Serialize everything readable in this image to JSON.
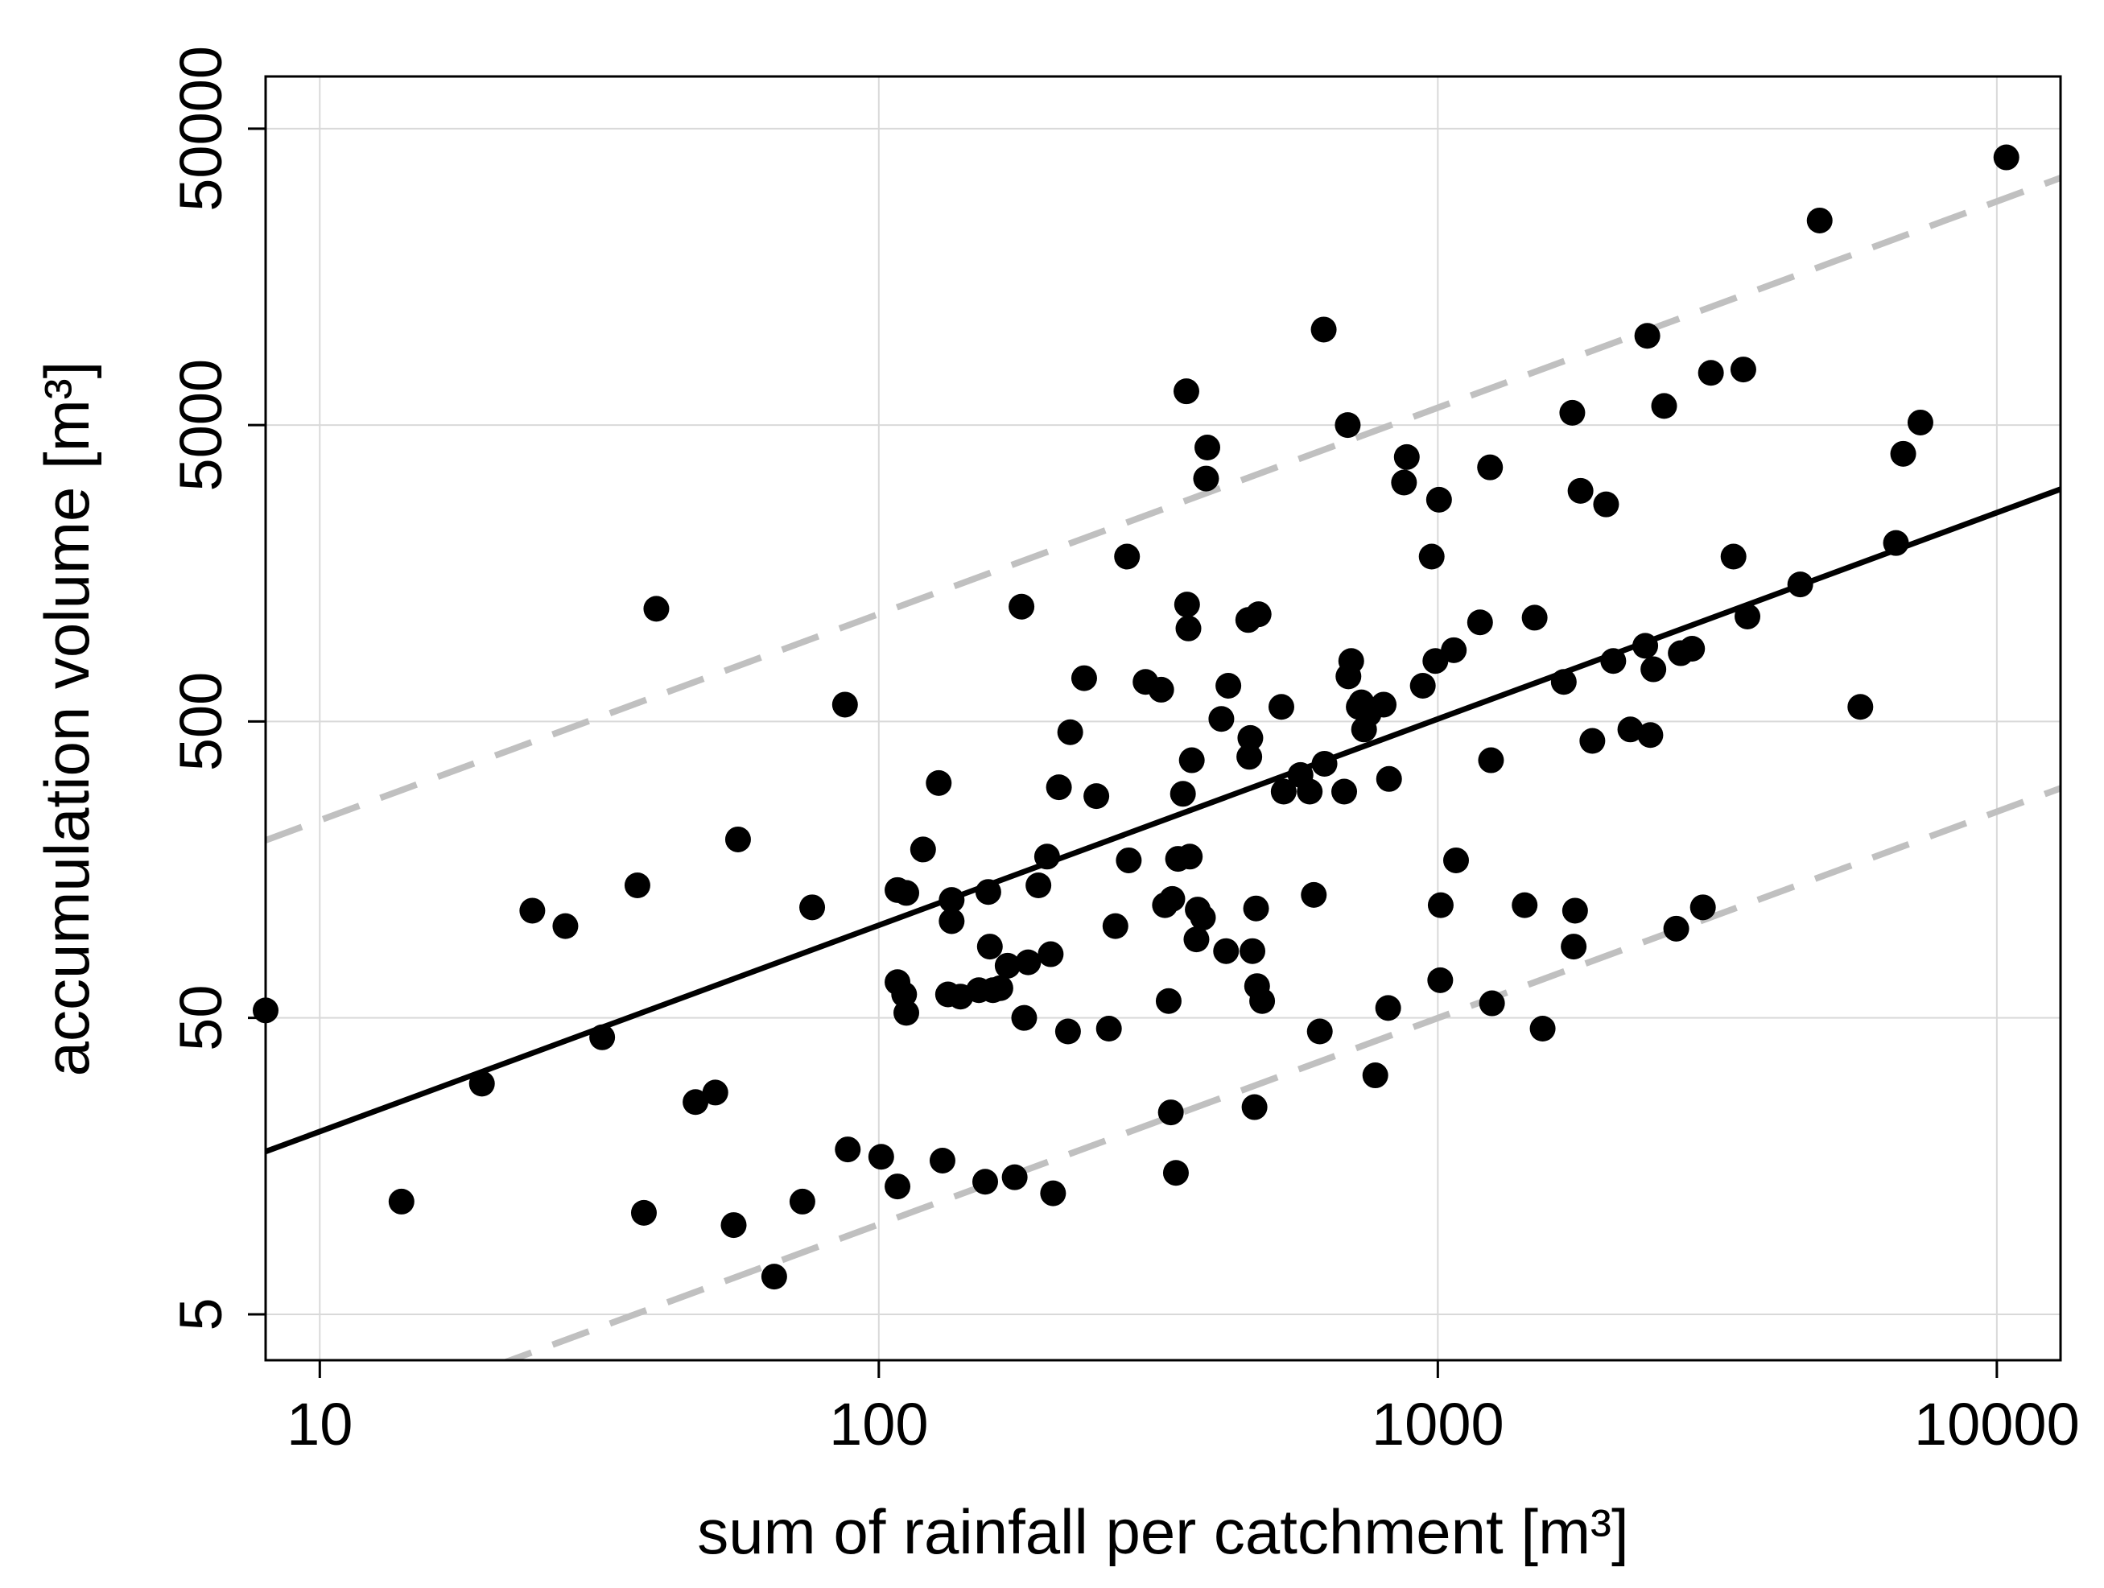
{
  "chart_data": {
    "type": "scatter",
    "title": "",
    "xlabel": "sum of rainfall per catchment [m³]",
    "ylabel": "accumulation volume [m³]",
    "xscale": "log10",
    "yscale": "log10",
    "xlim": [
      8,
      13000
    ],
    "ylim": [
      3.5,
      75000
    ],
    "grid": true,
    "legend": "none",
    "x_ticks": [
      10,
      100,
      1000,
      10000
    ],
    "x_tick_labels": [
      "10",
      "100",
      "1000",
      "10000"
    ],
    "y_ticks": [
      5,
      50,
      500,
      5000,
      50000
    ],
    "y_tick_labels": [
      "5",
      "50",
      "500",
      "5000",
      "50000"
    ],
    "colors": {
      "points": "#000000",
      "fit_line": "#000000",
      "interval_lines": "#c0c0c0",
      "grid": "#d9d9d9",
      "frame": "#000000"
    },
    "series": [
      {
        "name": "catchments",
        "points": [
          [
            8.0,
            53
          ],
          [
            14,
            12
          ],
          [
            19.5,
            30
          ],
          [
            24,
            115
          ],
          [
            27.5,
            102
          ],
          [
            32,
            43
          ],
          [
            37,
            140
          ],
          [
            38,
            11
          ],
          [
            40,
            1200
          ],
          [
            47,
            26
          ],
          [
            51,
            28
          ],
          [
            55,
            10
          ],
          [
            56,
            200
          ],
          [
            65,
            6.7
          ],
          [
            73,
            12
          ],
          [
            76,
            118
          ],
          [
            87,
            570
          ],
          [
            88,
            18
          ],
          [
            101,
            17
          ],
          [
            108,
            66
          ],
          [
            108,
            135
          ],
          [
            108,
            13.5
          ],
          [
            111,
            60
          ],
          [
            112,
            52
          ],
          [
            112,
            132
          ],
          [
            120,
            185
          ],
          [
            128,
            310
          ],
          [
            130,
            16.5
          ],
          [
            133,
            60
          ],
          [
            135,
            125
          ],
          [
            135,
            106
          ],
          [
            140,
            59
          ],
          [
            151,
            62
          ],
          [
            155,
            14
          ],
          [
            157,
            133
          ],
          [
            158,
            87
          ],
          [
            160,
            62
          ],
          [
            165,
            63
          ],
          [
            170,
            75
          ],
          [
            175,
            14.5
          ],
          [
            180,
            1220
          ],
          [
            182,
            50
          ],
          [
            185,
            77
          ],
          [
            193,
            140
          ],
          [
            200,
            175
          ],
          [
            203,
            82
          ],
          [
            205,
            12.8
          ],
          [
            210,
            300
          ],
          [
            218,
            45
          ],
          [
            220,
            460
          ],
          [
            233,
            700
          ],
          [
            245,
            280
          ],
          [
            258,
            46
          ],
          [
            265,
            102
          ],
          [
            278,
            1800
          ],
          [
            280,
            170
          ],
          [
            300,
            680
          ],
          [
            320,
            640
          ],
          [
            325,
            120
          ],
          [
            330,
            57
          ],
          [
            333,
            24
          ],
          [
            335,
            126
          ],
          [
            340,
            15
          ],
          [
            343,
            172
          ],
          [
            350,
            285
          ],
          [
            355,
            6500
          ],
          [
            356,
            1240
          ],
          [
            358,
            1030
          ],
          [
            360,
            175
          ],
          [
            363,
            370
          ],
          [
            370,
            92
          ],
          [
            372,
            116
          ],
          [
            380,
            109
          ],
          [
            385,
            3300
          ],
          [
            387,
            4200
          ],
          [
            410,
            510
          ],
          [
            418,
            84
          ],
          [
            422,
            660
          ],
          [
            458,
            1100
          ],
          [
            460,
            380
          ],
          [
            462,
            440
          ],
          [
            466,
            84
          ],
          [
            470,
            25
          ],
          [
            473,
            117
          ],
          [
            475,
            64
          ],
          [
            478,
            1150
          ],
          [
            485,
            57
          ],
          [
            525,
            560
          ],
          [
            530,
            290
          ],
          [
            568,
            330
          ],
          [
            590,
            290
          ],
          [
            600,
            130
          ],
          [
            615,
            45
          ],
          [
            625,
            10500
          ],
          [
            627,
            360
          ],
          [
            680,
            290
          ],
          [
            690,
            5000
          ],
          [
            692,
            710
          ],
          [
            700,
            800
          ],
          [
            722,
            560
          ],
          [
            730,
            580
          ],
          [
            738,
            470
          ],
          [
            752,
            530
          ],
          [
            773,
            32
          ],
          [
            800,
            570
          ],
          [
            815,
            54
          ],
          [
            818,
            320
          ],
          [
            870,
            3200
          ],
          [
            880,
            3900
          ],
          [
            940,
            660
          ],
          [
            975,
            1800
          ],
          [
            990,
            800
          ],
          [
            1005,
            2800
          ],
          [
            1010,
            67
          ],
          [
            1012,
            120
          ],
          [
            1068,
            870
          ],
          [
            1078,
            170
          ],
          [
            1190,
            1080
          ],
          [
            1240,
            3600
          ],
          [
            1245,
            370
          ],
          [
            1250,
            56
          ],
          [
            1430,
            120
          ],
          [
            1490,
            1120
          ],
          [
            1540,
            46
          ],
          [
            1680,
            680
          ],
          [
            1740,
            5500
          ],
          [
            1750,
            87
          ],
          [
            1760,
            115
          ],
          [
            1800,
            3000
          ],
          [
            1890,
            430
          ],
          [
            2000,
            2700
          ],
          [
            2060,
            800
          ],
          [
            2210,
            470
          ],
          [
            2350,
            900
          ],
          [
            2370,
            10000
          ],
          [
            2400,
            450
          ],
          [
            2430,
            750
          ],
          [
            2540,
            5800
          ],
          [
            2670,
            100
          ],
          [
            2720,
            850
          ],
          [
            2850,
            880
          ],
          [
            2980,
            118
          ],
          [
            3080,
            7500
          ],
          [
            3380,
            1800
          ],
          [
            3520,
            7700
          ],
          [
            3580,
            1130
          ],
          [
            4450,
            1450
          ],
          [
            4820,
            24500
          ],
          [
            5700,
            560
          ],
          [
            6600,
            2000
          ],
          [
            6800,
            4000
          ],
          [
            7300,
            5100
          ],
          [
            10400,
            40000
          ]
        ]
      }
    ],
    "fit": {
      "name": "regression fit",
      "style": "solid",
      "slope": 0.696,
      "intercept": 0.6195
    },
    "intervals": [
      {
        "name": "upper bound",
        "style": "dashed",
        "slope": 0.696,
        "intercept": 1.6695
      },
      {
        "name": "lower bound",
        "style": "dashed",
        "slope": 0.696,
        "intercept": -0.3895
      }
    ]
  }
}
